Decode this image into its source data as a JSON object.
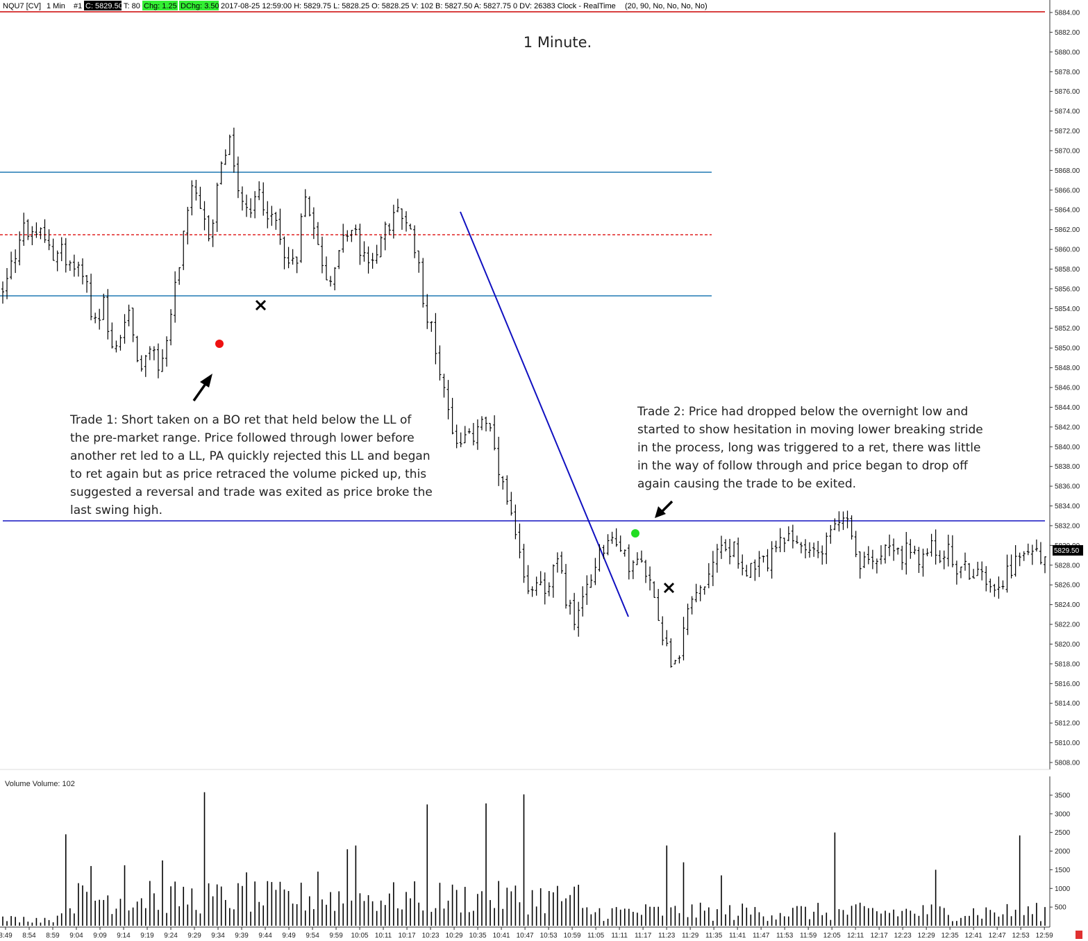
{
  "header": {
    "symbol": "NQU7 [CV]",
    "interval": "1 Min",
    "chart_number": "#1",
    "close": "C: 5829.50",
    "ticks": "T: 80",
    "change": "Chg: 1.25",
    "day_change": "DChg: 3.50",
    "info": "2017-08-25 12:59:00 H: 5829.75 L: 5828.25 O: 5828.25 V: 102 B: 5827.50 A: 5827.75 0 DV: 26383 Clock - RealTime",
    "study_params": "(20, 90, No, No, No, No)"
  },
  "title": "1 Minute.",
  "annotations": {
    "trade1": [
      "Trade 1:  Short taken on a BO ret that held below the LL of",
      "the pre-market range.  Price followed through lower before",
      "another ret led to a LL, PA quickly rejected this LL and began",
      "to ret again but as price retraced the volume picked up, this",
      "suggested a reversal and trade was exited as price broke the",
      "last swing high."
    ],
    "trade2": [
      "Trade 2:  Price had dropped below the overnight low and",
      "started to show hesitation in moving lower breaking stride",
      "in the process, long was triggered to a ret, there was little",
      "in the way of follow through and price began to drop off",
      "again causing the trade to be exited."
    ]
  },
  "last_price_label": "5829.50",
  "volume_label": "Volume  Volume: 102",
  "colors": {
    "background": "#ffffff",
    "bars": "#000000",
    "range_lines": "#1f78b4",
    "dashed_line": "#e02020",
    "trend_line": "#1010c0",
    "overnight_low_line": "#1010c0",
    "header_top_line": "#cc0000",
    "long_entry": "#22dd22",
    "short_entry": "#ee1111",
    "chg_bg": "#33ee33"
  },
  "chart_data": [
    {
      "type": "ohlc",
      "title": "1 Minute.",
      "yaxis_ticks": [
        5808,
        5810,
        5812,
        5814,
        5816,
        5818,
        5820,
        5822,
        5824,
        5826,
        5828,
        5830,
        5832,
        5834,
        5836,
        5838,
        5840,
        5842,
        5844,
        5846,
        5848,
        5850,
        5852,
        5854,
        5856,
        5858,
        5860,
        5862,
        5864,
        5866,
        5868,
        5870,
        5872,
        5874,
        5876,
        5878,
        5880,
        5882,
        5884
      ],
      "ylim": [
        5807,
        5885
      ],
      "x_labels": [
        "8:49",
        "8:54",
        "8:59",
        "9:04",
        "9:09",
        "9:14",
        "9:19",
        "9:24",
        "9:29",
        "9:34",
        "9:39",
        "9:44",
        "9:49",
        "9:54",
        "9:59",
        "10:05",
        "10:11",
        "10:17",
        "10:23",
        "10:29",
        "10:35",
        "10:41",
        "10:47",
        "10:53",
        "10:59",
        "11:05",
        "11:11",
        "11:17",
        "11:23",
        "11:29",
        "11:35",
        "11:41",
        "11:47",
        "11:53",
        "11:59",
        "12:05",
        "12:11",
        "12:17",
        "12:23",
        "12:29",
        "12:35",
        "12:41",
        "12:47",
        "12:53",
        "12:59"
      ],
      "price_path": [
        [
          8.82,
          5855.8
        ],
        [
          8.9,
          5858.5
        ],
        [
          8.98,
          5859.8
        ],
        [
          9.05,
          5862.5
        ],
        [
          9.15,
          5861
        ],
        [
          9.25,
          5862
        ],
        [
          9.35,
          5860
        ],
        [
          9.45,
          5860
        ],
        [
          9.55,
          5858
        ],
        [
          9.62,
          5858.5
        ],
        [
          9.72,
          5856
        ],
        [
          9.8,
          5852
        ],
        [
          9.9,
          5854
        ],
        [
          10.0,
          5849
        ],
        [
          10.08,
          5851
        ],
        [
          10.18,
          5854
        ],
        [
          10.25,
          5850
        ],
        [
          10.3,
          5847
        ],
        [
          10.38,
          5851
        ],
        [
          10.48,
          5847.5
        ],
        [
          10.55,
          5850
        ],
        [
          10.65,
          5855
        ],
        [
          10.75,
          5861
        ],
        [
          10.85,
          5866
        ],
        [
          10.95,
          5863
        ],
        [
          11.05,
          5861
        ],
        [
          11.15,
          5868.5
        ],
        [
          11.25,
          5871
        ],
        [
          11.35,
          5866
        ],
        [
          11.45,
          5863
        ],
        [
          11.55,
          5866
        ],
        [
          11.65,
          5864
        ],
        [
          11.75,
          5862
        ],
        [
          11.85,
          5860
        ],
        [
          11.95,
          5858
        ],
        [
          12.05,
          5866
        ],
        [
          12.15,
          5863
        ],
        [
          12.25,
          5858
        ],
        [
          12.35,
          5857
        ],
        [
          12.45,
          5861
        ],
        [
          12.55,
          5862
        ],
        [
          12.65,
          5860
        ],
        [
          12.75,
          5858
        ],
        [
          12.85,
          5861
        ],
        [
          12.95,
          5862
        ],
        [
          13.05,
          5864
        ],
        [
          13.15,
          5862
        ],
        [
          13.25,
          5860
        ],
        [
          13.35,
          5854
        ],
        [
          13.45,
          5850
        ],
        [
          13.55,
          5846
        ],
        [
          13.65,
          5841
        ],
        [
          13.75,
          5840
        ],
        [
          13.85,
          5841
        ],
        [
          13.95,
          5843
        ],
        [
          14.05,
          5841
        ],
        [
          14.15,
          5836
        ],
        [
          14.25,
          5833
        ],
        [
          14.35,
          5829
        ],
        [
          14.45,
          5825
        ],
        [
          14.55,
          5827
        ],
        [
          14.65,
          5825
        ],
        [
          14.75,
          5829
        ],
        [
          14.85,
          5825
        ],
        [
          14.95,
          5822
        ],
        [
          15.05,
          5825
        ],
        [
          15.15,
          5828
        ],
        [
          15.25,
          5830
        ],
        [
          15.35,
          5831
        ],
        [
          15.45,
          5829
        ],
        [
          15.55,
          5828.5
        ],
        [
          15.65,
          5828
        ],
        [
          15.75,
          5826
        ],
        [
          15.85,
          5823
        ],
        [
          15.95,
          5819
        ],
        [
          16.05,
          5818
        ],
        [
          16.15,
          5824
        ],
        [
          16.25,
          5825
        ],
        [
          16.35,
          5826
        ],
        [
          16.45,
          5829
        ],
        [
          16.55,
          5830
        ],
        [
          16.65,
          5830
        ],
        [
          16.75,
          5828
        ],
        [
          16.85,
          5827
        ],
        [
          16.95,
          5828
        ],
        [
          17.05,
          5829
        ],
        [
          17.15,
          5830
        ],
        [
          17.25,
          5831
        ],
        [
          17.35,
          5830
        ],
        [
          17.45,
          5829
        ],
        [
          17.55,
          5830
        ],
        [
          17.65,
          5831
        ],
        [
          17.75,
          5832
        ],
        [
          17.85,
          5833
        ],
        [
          17.95,
          5829
        ],
        [
          18.05,
          5828
        ],
        [
          18.15,
          5829
        ],
        [
          18.25,
          5830
        ],
        [
          18.35,
          5830.5
        ],
        [
          18.45,
          5829
        ],
        [
          18.55,
          5829
        ],
        [
          18.65,
          5828
        ],
        [
          18.75,
          5830
        ],
        [
          18.85,
          5829
        ],
        [
          18.95,
          5829
        ],
        [
          19.05,
          5828
        ],
        [
          19.15,
          5828
        ],
        [
          19.25,
          5827
        ],
        [
          19.35,
          5827
        ],
        [
          19.45,
          5826
        ],
        [
          19.55,
          5827
        ],
        [
          19.65,
          5828
        ],
        [
          19.75,
          5829
        ],
        [
          19.85,
          5829.5
        ]
      ],
      "volume": {
        "label": "Volume  Volume: 102",
        "yaxis_ticks": [
          500,
          1000,
          1500,
          2000,
          2500,
          3000,
          3500
        ],
        "spikes": [
          {
            "x": 9.5,
            "v": 2450
          },
          {
            "x": 9.75,
            "v": 1600
          },
          {
            "x": 10.12,
            "v": 1620
          },
          {
            "x": 10.4,
            "v": 1200
          },
          {
            "x": 10.55,
            "v": 1750
          },
          {
            "x": 10.97,
            "v": 3580
          },
          {
            "x": 11.42,
            "v": 1430
          },
          {
            "x": 12.2,
            "v": 1450
          },
          {
            "x": 12.53,
            "v": 2050
          },
          {
            "x": 12.6,
            "v": 2150
          },
          {
            "x": 13.38,
            "v": 3250
          },
          {
            "x": 14.0,
            "v": 3280
          },
          {
            "x": 14.38,
            "v": 3520
          },
          {
            "x": 15.95,
            "v": 2150
          },
          {
            "x": 16.13,
            "v": 1700
          },
          {
            "x": 16.52,
            "v": 1350
          },
          {
            "x": 17.72,
            "v": 2500
          },
          {
            "x": 18.8,
            "v": 1500
          },
          {
            "x": 19.73,
            "v": 2420
          }
        ]
      }
    }
  ]
}
